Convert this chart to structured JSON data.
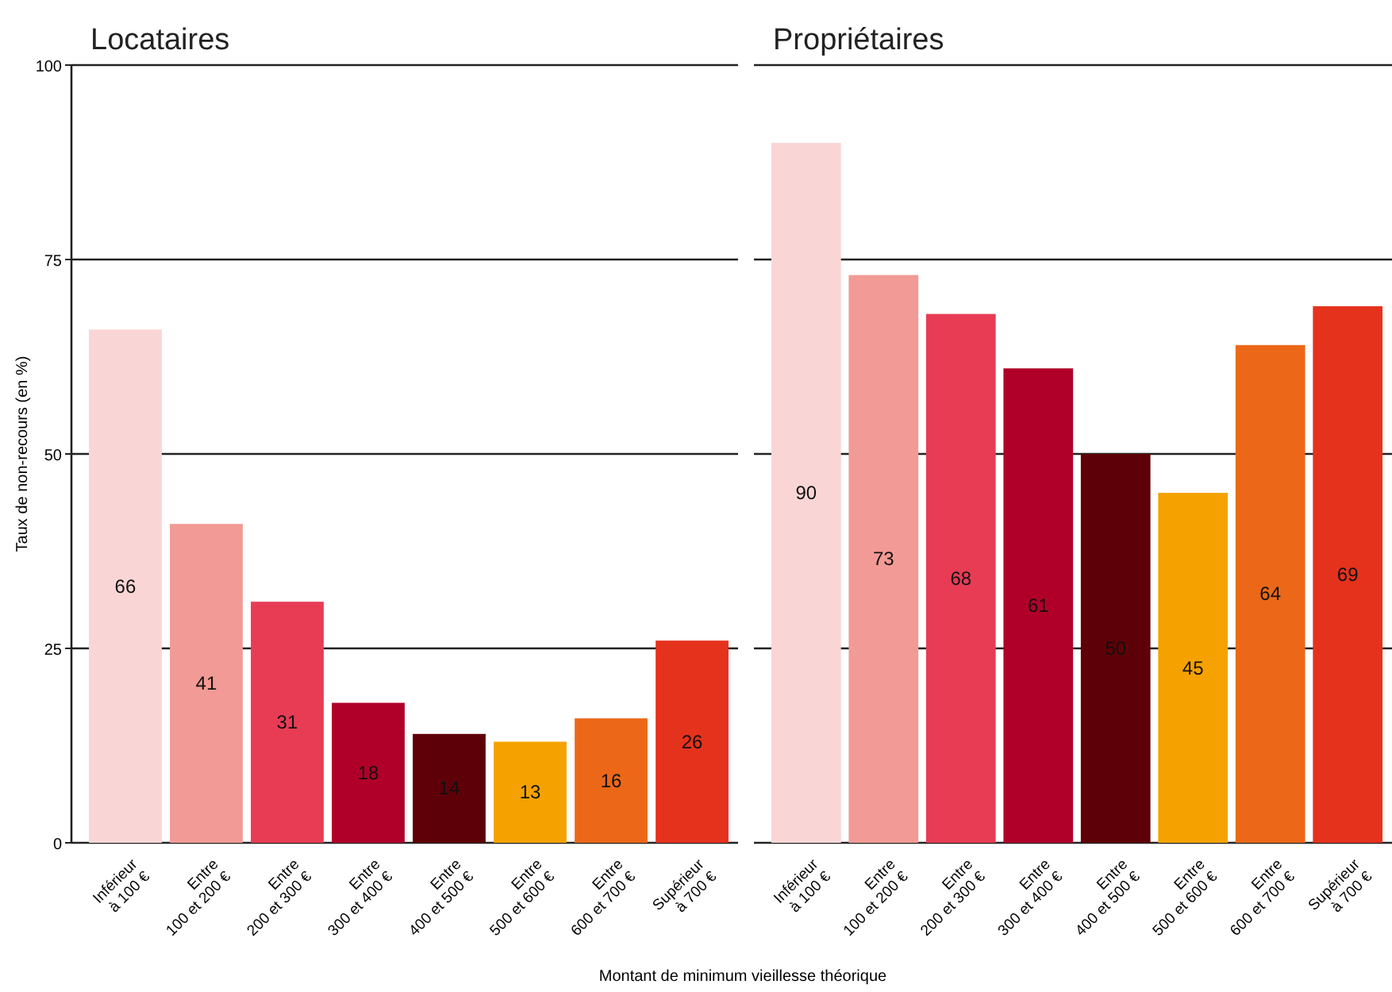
{
  "chart_data": [
    {
      "type": "bar",
      "title": "Locataires",
      "ylabel": "Taux de non-recours (en %)",
      "categories": [
        "Inférieur\nà 100 €",
        "Entre\n100 et 200 €",
        "Entre\n200 et 300 €",
        "Entre\n300 et 400 €",
        "Entre\n400 et 500 €",
        "Entre\n500 et 600 €",
        "Entre\n600 et 700 €",
        "Supérieur\nà 700 €"
      ],
      "values": [
        66,
        41,
        31,
        18,
        14,
        13,
        16,
        26
      ],
      "colors": [
        "#f9d6d5",
        "#f29a95",
        "#e83c55",
        "#b0002a",
        "#5e0008",
        "#f5a200",
        "#ec6818",
        "#e5321d"
      ],
      "ylim": [
        0,
        100
      ],
      "yticks": [
        0,
        25,
        50,
        75,
        100
      ],
      "grid": "y",
      "data_labels": true
    },
    {
      "type": "bar",
      "title": "Propriétaires",
      "xlabel": "Montant de minimum vieillesse théorique",
      "categories": [
        "Inférieur\nà 100 €",
        "Entre\n100 et 200 €",
        "Entre\n200 et 300 €",
        "Entre\n300 et 400 €",
        "Entre\n400 et 500 €",
        "Entre\n500 et 600 €",
        "Entre\n600 et 700 €",
        "Supérieur\nà 700 €"
      ],
      "values": [
        90,
        73,
        68,
        61,
        50,
        45,
        64,
        69
      ],
      "colors": [
        "#f9d6d5",
        "#f29a95",
        "#e83c55",
        "#b0002a",
        "#5e0008",
        "#f5a200",
        "#ec6818",
        "#e5321d"
      ],
      "ylim": [
        0,
        100
      ],
      "yticks": [
        0,
        25,
        50,
        75,
        100
      ],
      "grid": "y",
      "data_labels": true,
      "tick_labels": "x"
    }
  ]
}
